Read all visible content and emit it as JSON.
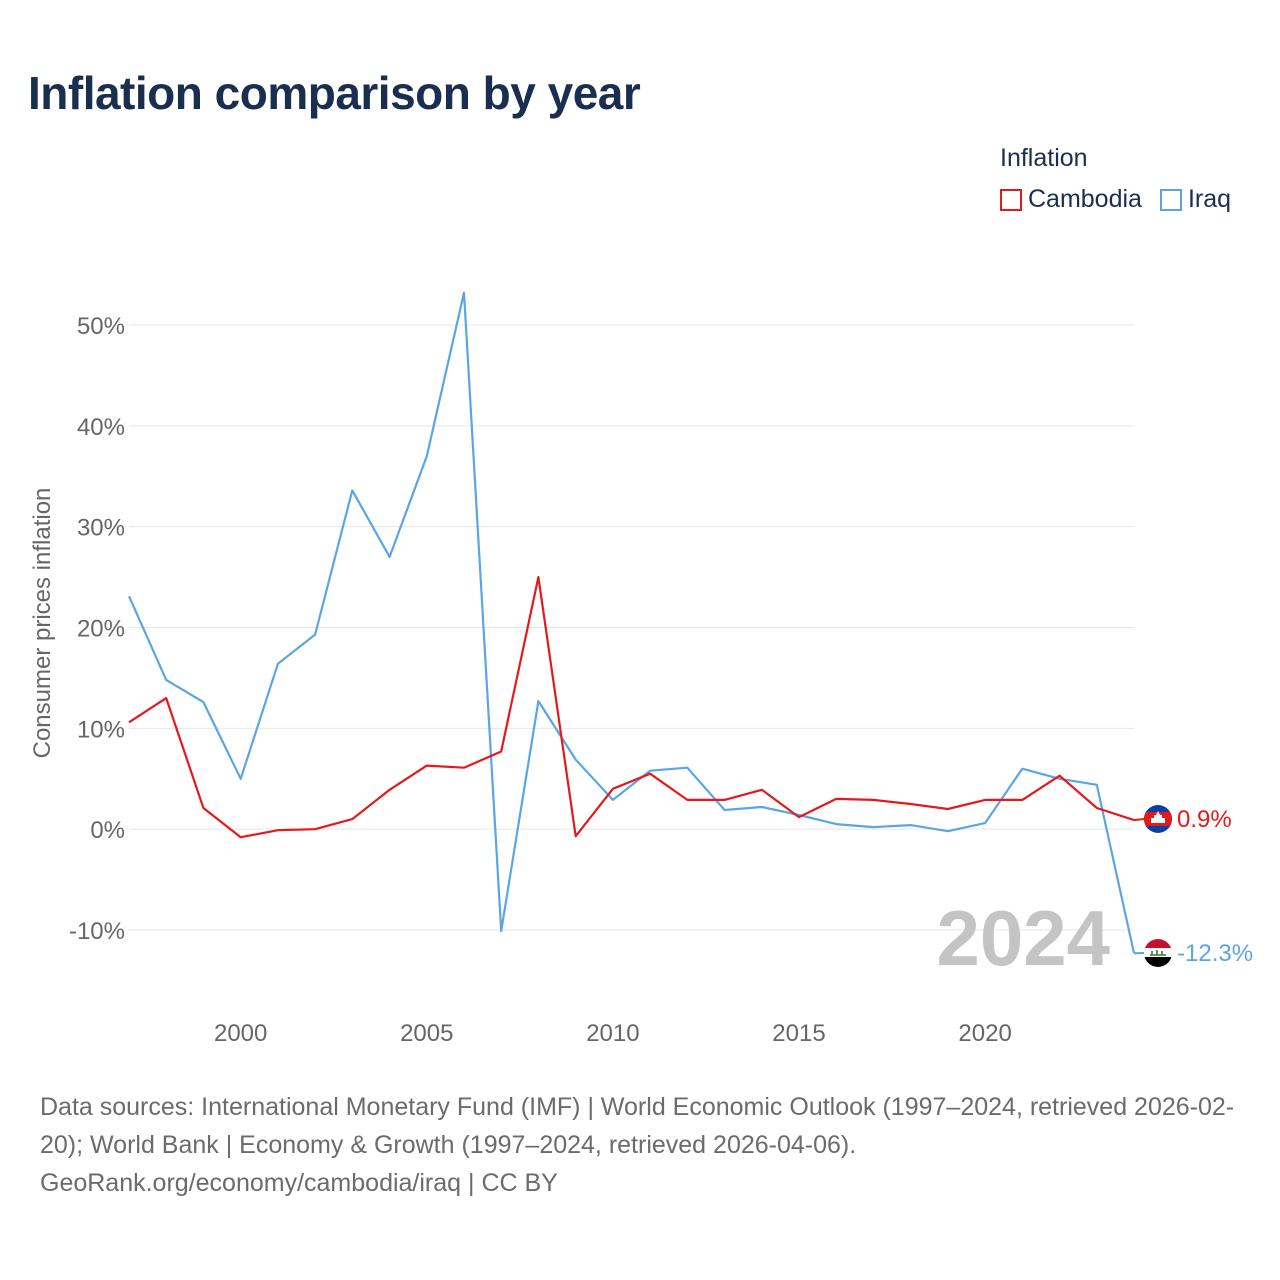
{
  "title": "Inflation comparison by year",
  "legend": {
    "title": "Inflation",
    "items": [
      {
        "label": "Cambodia",
        "color": "#e31a1c"
      },
      {
        "label": "Iraq",
        "color": "#5aa5e6"
      }
    ]
  },
  "chart_data": {
    "type": "line",
    "title": "Inflation comparison by year",
    "xlabel": "",
    "ylabel": "Consumer prices inflation",
    "xlim": [
      1997,
      2024
    ],
    "ylim": [
      -10,
      50
    ],
    "yticks": [
      -10,
      0,
      10,
      20,
      30,
      40,
      50
    ],
    "ytick_labels": [
      "-10%",
      "0%",
      "10%",
      "20%",
      "30%",
      "40%",
      "50%"
    ],
    "xticks": [
      2000,
      2005,
      2010,
      2015,
      2020
    ],
    "xtick_labels": [
      "2000",
      "2005",
      "2010",
      "2015",
      "2020"
    ],
    "grid": true,
    "x": [
      1997,
      1998,
      1999,
      2000,
      2001,
      2002,
      2003,
      2004,
      2005,
      2006,
      2007,
      2008,
      2009,
      2010,
      2011,
      2012,
      2013,
      2014,
      2015,
      2016,
      2017,
      2018,
      2019,
      2020,
      2021,
      2022,
      2023,
      2024
    ],
    "series": [
      {
        "name": "Cambodia",
        "color": "#e31a1c",
        "values": [
          10.6,
          13.0,
          2.1,
          -0.8,
          -0.1,
          0.0,
          1.0,
          3.9,
          6.3,
          6.1,
          7.7,
          25.0,
          -0.7,
          4.0,
          5.5,
          2.9,
          2.9,
          3.9,
          1.2,
          3.0,
          2.9,
          2.5,
          2.0,
          2.9,
          2.9,
          5.3,
          2.1,
          0.9
        ],
        "end_label": "0.9%"
      },
      {
        "name": "Iraq",
        "color": "#5aa5e6",
        "values": [
          23.1,
          14.8,
          12.6,
          5.0,
          16.4,
          19.3,
          33.6,
          27.0,
          37.0,
          53.2,
          -10.1,
          12.7,
          6.9,
          2.9,
          5.8,
          6.1,
          1.9,
          2.2,
          1.4,
          0.5,
          0.2,
          0.4,
          -0.2,
          0.6,
          6.0,
          5.0,
          4.4,
          -12.3
        ],
        "end_label": "-12.3%"
      }
    ],
    "year_watermark": "2024"
  },
  "footer": {
    "sources": "Data sources: International Monetary Fund (IMF) | World Economic Outlook (1997–2024, retrieved 2026-02-20); World Bank | Economy & Growth (1997–2024, retrieved 2026-04-06).",
    "attribution": "GeoRank.org/economy/cambodia/iraq | CC BY"
  },
  "colors": {
    "title": "#1a2e4f",
    "grid": "#e6e6e6",
    "tick_text": "#666666",
    "watermark": "#c4c4c4",
    "cambodia_blue": "#0b3fa3",
    "iraq_red": "#c8102e",
    "iraq_black": "#000000"
  },
  "icons": [
    "flag-cambodia-icon",
    "flag-iraq-icon"
  ]
}
